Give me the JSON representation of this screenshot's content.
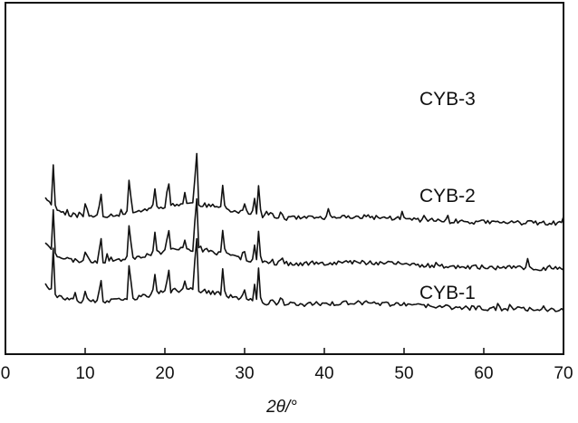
{
  "chart_data": {
    "type": "line",
    "xlabel": "2θ/°",
    "ylabel": "",
    "title": "",
    "xlim": [
      0,
      70
    ],
    "x_ticks": [
      "0",
      "10",
      "20",
      "30",
      "40",
      "50",
      "60",
      "70"
    ],
    "y_ticks": [],
    "grid": false,
    "legend": "none",
    "line_color": "#111111",
    "x_sampling": {
      "start": 5,
      "end": 70,
      "step": 0.25
    },
    "peaks": [
      {
        "x": 6.0,
        "h": 48
      },
      {
        "x": 10.1,
        "h": 20
      },
      {
        "x": 11.9,
        "h": 40
      },
      {
        "x": 15.6,
        "h": 58
      },
      {
        "x": 18.7,
        "h": 26
      },
      {
        "x": 20.4,
        "h": 40
      },
      {
        "x": 22.5,
        "h": 12
      },
      {
        "x": 23.9,
        "h": 92
      },
      {
        "x": 27.3,
        "h": 32
      },
      {
        "x": 29.9,
        "h": 15
      },
      {
        "x": 31.2,
        "h": 22
      },
      {
        "x": 31.8,
        "h": 40
      },
      {
        "x": 33.4,
        "h": 9
      },
      {
        "x": 34.6,
        "h": 10
      }
    ],
    "series": [
      {
        "name": "CYB-3",
        "baseline": 95,
        "seed": 11
      },
      {
        "name": "CYB-2",
        "baseline": 45,
        "seed": 23
      },
      {
        "name": "CYB-1",
        "baseline": 0,
        "seed": 37
      }
    ]
  }
}
